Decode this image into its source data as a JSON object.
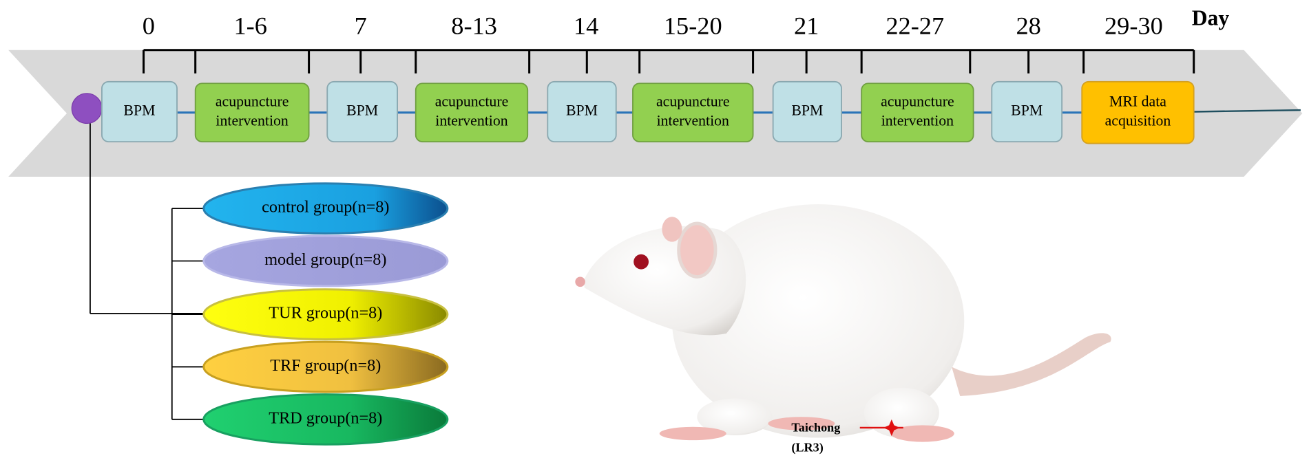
{
  "timeline": {
    "unit": "Day",
    "days": [
      "0",
      "1-6",
      "7",
      "8-13",
      "14",
      "15-20",
      "21",
      "22-27",
      "28",
      "29-30"
    ]
  },
  "steps": [
    {
      "lines": [
        "BPM"
      ],
      "kind": "bpm"
    },
    {
      "lines": [
        "acupuncture",
        "intervention"
      ],
      "kind": "acu"
    },
    {
      "lines": [
        "BPM"
      ],
      "kind": "bpm"
    },
    {
      "lines": [
        "acupuncture",
        "intervention"
      ],
      "kind": "acu"
    },
    {
      "lines": [
        "BPM"
      ],
      "kind": "bpm"
    },
    {
      "lines": [
        "acupuncture",
        "intervention"
      ],
      "kind": "acu"
    },
    {
      "lines": [
        "BPM"
      ],
      "kind": "bpm"
    },
    {
      "lines": [
        "acupuncture",
        "intervention"
      ],
      "kind": "acu"
    },
    {
      "lines": [
        "BPM"
      ],
      "kind": "bpm"
    },
    {
      "lines": [
        "MRI data",
        "acquisition"
      ],
      "kind": "mri"
    }
  ],
  "groups": [
    "control group(n=8)",
    "model group(n=8)",
    "TUR group(n=8)",
    "TRF group(n=8)",
    "TRD group(n=8)"
  ],
  "annotation": {
    "point": "Taichong",
    "code": "(LR3)"
  }
}
